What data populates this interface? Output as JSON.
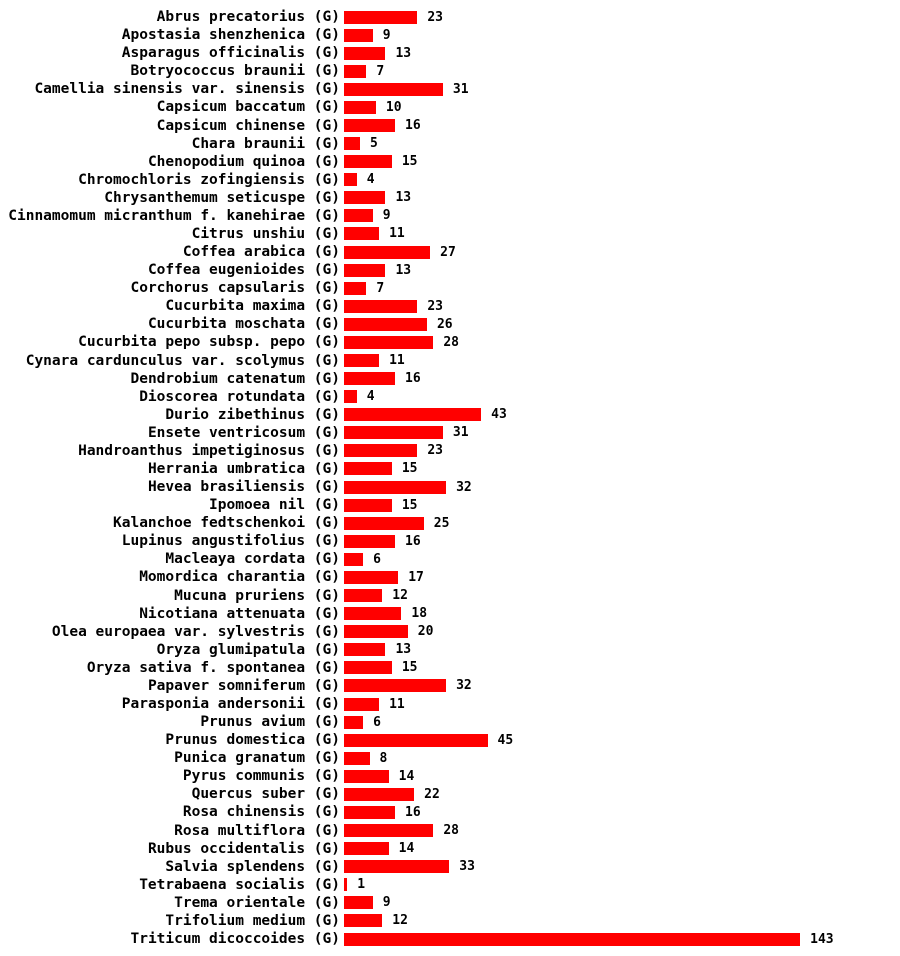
{
  "chart_data": {
    "type": "bar",
    "orientation": "horizontal",
    "title": "",
    "xlabel": "",
    "ylabel": "",
    "grid": false,
    "legend": false,
    "bar_color": "#ff0000",
    "text_color": "#000000",
    "background_color": "#ffffff",
    "value_labels_shown": true,
    "xlim": [
      0,
      143
    ],
    "categories": [
      "Abrus precatorius (G)",
      "Apostasia shenzhenica (G)",
      "Asparagus officinalis (G)",
      "Botryococcus braunii (G)",
      "Camellia sinensis var. sinensis (G)",
      "Capsicum baccatum (G)",
      "Capsicum chinense (G)",
      "Chara braunii (G)",
      "Chenopodium quinoa (G)",
      "Chromochloris zofingiensis (G)",
      "Chrysanthemum seticuspe (G)",
      "Cinnamomum micranthum f. kanehirae (G)",
      "Citrus unshiu (G)",
      "Coffea arabica (G)",
      "Coffea eugenioides (G)",
      "Corchorus capsularis (G)",
      "Cucurbita maxima (G)",
      "Cucurbita moschata (G)",
      "Cucurbita pepo subsp. pepo (G)",
      "Cynara cardunculus var. scolymus (G)",
      "Dendrobium catenatum (G)",
      "Dioscorea rotundata (G)",
      "Durio zibethinus (G)",
      "Ensete ventricosum (G)",
      "Handroanthus impetiginosus (G)",
      "Herrania umbratica (G)",
      "Hevea brasiliensis (G)",
      "Ipomoea nil (G)",
      "Kalanchoe fedtschenkoi (G)",
      "Lupinus angustifolius (G)",
      "Macleaya cordata (G)",
      "Momordica charantia (G)",
      "Mucuna pruriens (G)",
      "Nicotiana attenuata (G)",
      "Olea europaea var. sylvestris (G)",
      "Oryza glumipatula (G)",
      "Oryza sativa f. spontanea (G)",
      "Papaver somniferum (G)",
      "Parasponia andersonii (G)",
      "Prunus avium (G)",
      "Prunus domestica (G)",
      "Punica granatum (G)",
      "Pyrus communis (G)",
      "Quercus suber (G)",
      "Rosa chinensis (G)",
      "Rosa multiflora (G)",
      "Rubus occidentalis (G)",
      "Salvia splendens (G)",
      "Tetrabaena socialis (G)",
      "Trema orientale (G)",
      "Trifolium medium (G)",
      "Triticum dicoccoides (G)"
    ],
    "values": [
      23,
      9,
      13,
      7,
      31,
      10,
      16,
      5,
      15,
      4,
      13,
      9,
      11,
      27,
      13,
      7,
      23,
      26,
      28,
      11,
      16,
      4,
      43,
      31,
      23,
      15,
      32,
      15,
      25,
      16,
      6,
      17,
      12,
      18,
      20,
      13,
      15,
      32,
      11,
      6,
      45,
      8,
      14,
      22,
      16,
      28,
      14,
      33,
      1,
      9,
      12,
      143
    ]
  }
}
